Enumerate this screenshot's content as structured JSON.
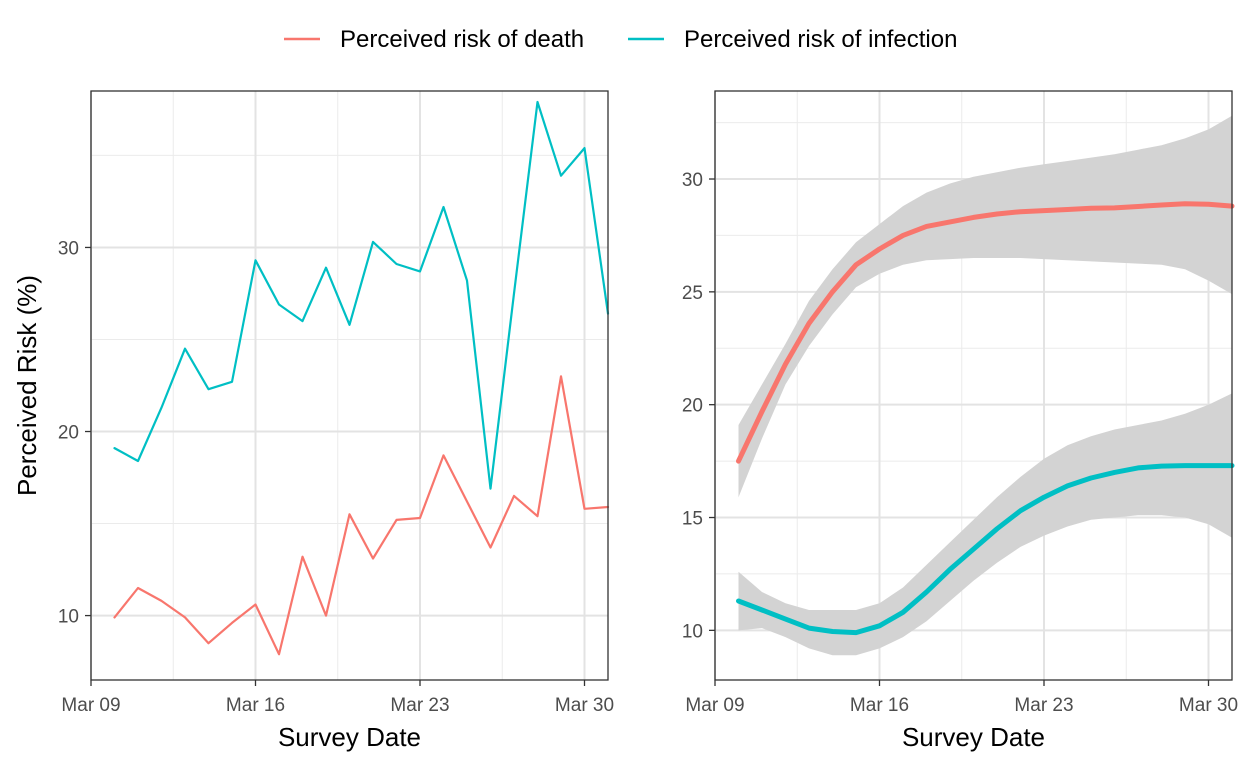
{
  "legend": {
    "items": [
      {
        "label": "Perceived risk of death",
        "color": "#F8766D"
      },
      {
        "label": "Perceived risk of infection",
        "color": "#00BFC4"
      }
    ],
    "position": "top"
  },
  "colors": {
    "death": "#F8766D",
    "infection": "#00BFC4",
    "ribbon": "#d3d3d3"
  },
  "chart_data": [
    {
      "type": "line",
      "xlabel": "Survey Date",
      "ylabel": "Perceived Risk (%)",
      "x_ticks": [
        {
          "date": "2020-03-09",
          "label": "Mar 09"
        },
        {
          "date": "2020-03-16",
          "label": "Mar 16"
        },
        {
          "date": "2020-03-23",
          "label": "Mar 23"
        },
        {
          "date": "2020-03-30",
          "label": "Mar 30"
        }
      ],
      "y_ticks": [
        10,
        20,
        30
      ],
      "xlim": [
        "2020-03-09",
        "2020-03-31"
      ],
      "ylim": [
        6.5,
        38.5
      ],
      "grid": true,
      "series": [
        {
          "name": "Perceived risk of death",
          "color": "#F8766D",
          "x": [
            "2020-03-10",
            "2020-03-11",
            "2020-03-12",
            "2020-03-13",
            "2020-03-14",
            "2020-03-15",
            "2020-03-16",
            "2020-03-17",
            "2020-03-18",
            "2020-03-19",
            "2020-03-20",
            "2020-03-21",
            "2020-03-22",
            "2020-03-23",
            "2020-03-24",
            "2020-03-25",
            "2020-03-26",
            "2020-03-27",
            "2020-03-28",
            "2020-03-29",
            "2020-03-30",
            "2020-03-31"
          ],
          "values": [
            9.9,
            11.5,
            10.8,
            9.9,
            8.5,
            9.6,
            10.6,
            7.9,
            13.2,
            10.0,
            15.5,
            13.1,
            15.2,
            15.3,
            18.7,
            16.2,
            13.7,
            16.5,
            15.4,
            23.0,
            15.8,
            15.9
          ]
        },
        {
          "name": "Perceived risk of infection",
          "color": "#00BFC4",
          "x": [
            "2020-03-10",
            "2020-03-11",
            "2020-03-12",
            "2020-03-13",
            "2020-03-14",
            "2020-03-15",
            "2020-03-16",
            "2020-03-17",
            "2020-03-18",
            "2020-03-19",
            "2020-03-20",
            "2020-03-21",
            "2020-03-22",
            "2020-03-23",
            "2020-03-24",
            "2020-03-25",
            "2020-03-26",
            "2020-03-27",
            "2020-03-28",
            "2020-03-29",
            "2020-03-30",
            "2020-03-31"
          ],
          "values": [
            19.1,
            18.4,
            21.3,
            24.5,
            22.3,
            22.7,
            29.3,
            26.9,
            26.0,
            28.9,
            25.8,
            30.3,
            29.1,
            28.7,
            32.2,
            28.2,
            16.9,
            27.5,
            37.9,
            33.9,
            35.4,
            26.4
          ]
        }
      ]
    },
    {
      "type": "area",
      "xlabel": "Survey Date",
      "ylabel": "",
      "x_ticks": [
        {
          "date": "2020-03-09",
          "label": "Mar 09"
        },
        {
          "date": "2020-03-16",
          "label": "Mar 16"
        },
        {
          "date": "2020-03-23",
          "label": "Mar 23"
        },
        {
          "date": "2020-03-30",
          "label": "Mar 30"
        }
      ],
      "y_ticks": [
        10,
        15,
        20,
        25,
        30
      ],
      "xlim": [
        "2020-03-09",
        "2020-03-31"
      ],
      "ylim": [
        7.8,
        33.9
      ],
      "grid": true,
      "series": [
        {
          "name": "Perceived risk of death",
          "color": "#F8766D",
          "x": [
            "2020-03-10",
            "2020-03-11",
            "2020-03-12",
            "2020-03-13",
            "2020-03-14",
            "2020-03-15",
            "2020-03-16",
            "2020-03-17",
            "2020-03-18",
            "2020-03-19",
            "2020-03-20",
            "2020-03-21",
            "2020-03-22",
            "2020-03-23",
            "2020-03-24",
            "2020-03-25",
            "2020-03-26",
            "2020-03-27",
            "2020-03-28",
            "2020-03-29",
            "2020-03-30",
            "2020-03-31"
          ],
          "values": [
            17.5,
            19.7,
            21.8,
            23.6,
            25.0,
            26.2,
            26.9,
            27.5,
            27.9,
            28.1,
            28.3,
            28.45,
            28.55,
            28.6,
            28.65,
            28.7,
            28.72,
            28.78,
            28.85,
            28.9,
            28.88,
            28.8
          ],
          "lower": [
            15.9,
            18.5,
            20.9,
            22.6,
            24.0,
            25.2,
            25.8,
            26.2,
            26.4,
            26.45,
            26.5,
            26.5,
            26.5,
            26.45,
            26.4,
            26.35,
            26.3,
            26.25,
            26.2,
            26.0,
            25.5,
            24.9
          ],
          "upper": [
            19.1,
            20.9,
            22.7,
            24.6,
            26.0,
            27.2,
            28.0,
            28.8,
            29.4,
            29.8,
            30.1,
            30.3,
            30.5,
            30.65,
            30.8,
            30.95,
            31.1,
            31.3,
            31.5,
            31.8,
            32.2,
            32.8
          ]
        },
        {
          "name": "Perceived risk of infection",
          "color": "#00BFC4",
          "x": [
            "2020-03-10",
            "2020-03-11",
            "2020-03-12",
            "2020-03-13",
            "2020-03-14",
            "2020-03-15",
            "2020-03-16",
            "2020-03-17",
            "2020-03-18",
            "2020-03-19",
            "2020-03-20",
            "2020-03-21",
            "2020-03-22",
            "2020-03-23",
            "2020-03-24",
            "2020-03-25",
            "2020-03-26",
            "2020-03-27",
            "2020-03-28",
            "2020-03-29",
            "2020-03-30",
            "2020-03-31"
          ],
          "values": [
            11.3,
            10.9,
            10.5,
            10.1,
            9.95,
            9.9,
            10.2,
            10.8,
            11.7,
            12.7,
            13.6,
            14.5,
            15.3,
            15.9,
            16.4,
            16.75,
            17.0,
            17.2,
            17.28,
            17.3,
            17.3,
            17.3
          ],
          "lower": [
            10.0,
            10.1,
            9.7,
            9.2,
            8.9,
            8.9,
            9.2,
            9.7,
            10.4,
            11.3,
            12.2,
            13.0,
            13.7,
            14.2,
            14.6,
            14.9,
            15.0,
            15.1,
            15.1,
            15.0,
            14.7,
            14.1
          ],
          "upper": [
            12.6,
            11.7,
            11.2,
            10.9,
            10.9,
            10.9,
            11.2,
            11.9,
            12.9,
            13.9,
            14.9,
            15.9,
            16.8,
            17.6,
            18.2,
            18.6,
            18.9,
            19.1,
            19.3,
            19.6,
            20.0,
            20.5
          ]
        }
      ]
    }
  ]
}
